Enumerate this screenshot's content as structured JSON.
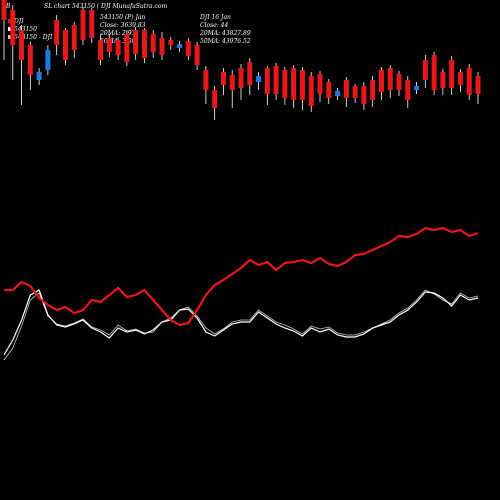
{
  "header": {
    "left_marker": "B",
    "title": "SL chart 543150 ( DJI MunafaSutra.com",
    "legend_line1": "DJI",
    "legend_line2": "543150",
    "legend_line3": "543150 - DJI",
    "stat_col1": [
      "543150 (P) Jan",
      "Close: 3639.83",
      "20MA: 2.93",
      "50MA: 3.08"
    ],
    "stat_col2": [
      "DJI 16 Jan",
      "Close: 44",
      "20MA: 43827.89",
      "50MA: 43976.52"
    ]
  },
  "colors": {
    "red_line": "#e8181a",
    "white_line": "#ffffff",
    "gray_line": "#c8c8c8",
    "bar_red": "#e8181a",
    "bar_blue": "#1e7be0",
    "background": "#000000"
  },
  "chart_data": {
    "type": "line",
    "x_count": 55,
    "series": [
      {
        "role": "red-line",
        "values": [
          210,
          210,
          218,
          214,
          202,
          195,
          190,
          193,
          187,
          190,
          200,
          198,
          205,
          212,
          203,
          205,
          210,
          200,
          190,
          180,
          175,
          177,
          190,
          205,
          215,
          220,
          226,
          232,
          240,
          235,
          238,
          230,
          237,
          238,
          240,
          237,
          242,
          236,
          234,
          238,
          245,
          246,
          250,
          254,
          258,
          264,
          263,
          266,
          272,
          270,
          272,
          268,
          270,
          264,
          267
        ]
      },
      {
        "role": "white-line",
        "values": [
          145,
          160,
          180,
          205,
          210,
          185,
          175,
          173,
          176,
          180,
          172,
          168,
          162,
          172,
          168,
          170,
          166,
          170,
          178,
          180,
          190,
          191,
          182,
          168,
          164,
          170,
          176,
          178,
          178,
          188,
          182,
          176,
          172,
          169,
          164,
          172,
          168,
          171,
          165,
          163,
          163,
          166,
          172,
          175,
          178,
          185,
          190,
          198,
          208,
          207,
          202,
          194,
          205,
          200,
          202
        ]
      },
      {
        "role": "gray-line",
        "values": [
          140,
          152,
          174,
          200,
          207,
          184,
          176,
          174,
          177,
          181,
          173,
          170,
          165,
          175,
          169,
          171,
          167,
          168,
          178,
          182,
          190,
          193,
          184,
          172,
          166,
          171,
          178,
          180,
          180,
          190,
          184,
          178,
          175,
          171,
          166,
          174,
          171,
          173,
          167,
          165,
          165,
          168,
          172,
          176,
          180,
          187,
          192,
          200,
          210,
          206,
          200,
          196,
          207,
          202,
          204
        ]
      }
    ],
    "bars": [
      {
        "dir": "down",
        "open": 500,
        "close": 480,
        "high": 500,
        "low": 440
      },
      {
        "dir": "down",
        "open": 490,
        "close": 455,
        "high": 495,
        "low": 420
      },
      {
        "dir": "down",
        "open": 470,
        "close": 440,
        "high": 475,
        "low": 395
      },
      {
        "dir": "down",
        "open": 455,
        "close": 425,
        "high": 458,
        "low": 410
      },
      {
        "dir": "up",
        "open": 420,
        "close": 428,
        "high": 432,
        "low": 415
      },
      {
        "dir": "up",
        "open": 430,
        "close": 450,
        "high": 455,
        "low": 425
      },
      {
        "dir": "down",
        "open": 480,
        "close": 455,
        "high": 485,
        "low": 445
      },
      {
        "dir": "down",
        "open": 470,
        "close": 440,
        "high": 472,
        "low": 435
      },
      {
        "dir": "down",
        "open": 475,
        "close": 450,
        "high": 478,
        "low": 442
      },
      {
        "dir": "down",
        "open": 490,
        "close": 460,
        "high": 493,
        "low": 455
      },
      {
        "dir": "down",
        "open": 490,
        "close": 462,
        "high": 492,
        "low": 457
      },
      {
        "dir": "down",
        "open": 460,
        "close": 440,
        "high": 465,
        "low": 435
      },
      {
        "dir": "down",
        "open": 462,
        "close": 448,
        "high": 466,
        "low": 443
      },
      {
        "dir": "down",
        "open": 460,
        "close": 445,
        "high": 463,
        "low": 440
      },
      {
        "dir": "down",
        "open": 466,
        "close": 438,
        "high": 470,
        "low": 434
      },
      {
        "dir": "down",
        "open": 470,
        "close": 446,
        "high": 473,
        "low": 440
      },
      {
        "dir": "down",
        "open": 470,
        "close": 442,
        "high": 472,
        "low": 437
      },
      {
        "dir": "down",
        "open": 466,
        "close": 448,
        "high": 470,
        "low": 442
      },
      {
        "dir": "down",
        "open": 462,
        "close": 445,
        "high": 468,
        "low": 440
      },
      {
        "dir": "down",
        "open": 460,
        "close": 455,
        "high": 463,
        "low": 450
      },
      {
        "dir": "up",
        "open": 452,
        "close": 456,
        "high": 459,
        "low": 448
      },
      {
        "dir": "down",
        "open": 459,
        "close": 444,
        "high": 462,
        "low": 440
      },
      {
        "dir": "down",
        "open": 455,
        "close": 435,
        "high": 458,
        "low": 430
      },
      {
        "dir": "down",
        "open": 430,
        "close": 410,
        "high": 434,
        "low": 396
      },
      {
        "dir": "down",
        "open": 410,
        "close": 392,
        "high": 414,
        "low": 380
      },
      {
        "dir": "down",
        "open": 428,
        "close": 415,
        "high": 432,
        "low": 405
      },
      {
        "dir": "down",
        "open": 425,
        "close": 410,
        "high": 430,
        "low": 392
      },
      {
        "dir": "down",
        "open": 432,
        "close": 412,
        "high": 436,
        "low": 400
      },
      {
        "dir": "down",
        "open": 438,
        "close": 415,
        "high": 442,
        "low": 405
      },
      {
        "dir": "up",
        "open": 418,
        "close": 424,
        "high": 428,
        "low": 410
      },
      {
        "dir": "down",
        "open": 432,
        "close": 406,
        "high": 434,
        "low": 395
      },
      {
        "dir": "down",
        "open": 434,
        "close": 406,
        "high": 437,
        "low": 400
      },
      {
        "dir": "down",
        "open": 430,
        "close": 402,
        "high": 433,
        "low": 395
      },
      {
        "dir": "down",
        "open": 432,
        "close": 400,
        "high": 435,
        "low": 392
      },
      {
        "dir": "down",
        "open": 430,
        "close": 400,
        "high": 433,
        "low": 390
      },
      {
        "dir": "down",
        "open": 424,
        "close": 394,
        "high": 428,
        "low": 388
      },
      {
        "dir": "down",
        "open": 426,
        "close": 406,
        "high": 429,
        "low": 398
      },
      {
        "dir": "down",
        "open": 418,
        "close": 402,
        "high": 421,
        "low": 396
      },
      {
        "dir": "up",
        "open": 404,
        "close": 409,
        "high": 412,
        "low": 400
      },
      {
        "dir": "down",
        "open": 420,
        "close": 402,
        "high": 423,
        "low": 393
      },
      {
        "dir": "down",
        "open": 414,
        "close": 402,
        "high": 416,
        "low": 397
      },
      {
        "dir": "down",
        "open": 414,
        "close": 396,
        "high": 418,
        "low": 390
      },
      {
        "dir": "down",
        "open": 420,
        "close": 400,
        "high": 424,
        "low": 393
      },
      {
        "dir": "down",
        "open": 430,
        "close": 408,
        "high": 433,
        "low": 400
      },
      {
        "dir": "down",
        "open": 432,
        "close": 410,
        "high": 435,
        "low": 402
      },
      {
        "dir": "down",
        "open": 426,
        "close": 410,
        "high": 429,
        "low": 404
      },
      {
        "dir": "down",
        "open": 420,
        "close": 400,
        "high": 424,
        "low": 392
      },
      {
        "dir": "up",
        "open": 410,
        "close": 414,
        "high": 418,
        "low": 406
      },
      {
        "dir": "down",
        "open": 440,
        "close": 420,
        "high": 445,
        "low": 412
      },
      {
        "dir": "down",
        "open": 445,
        "close": 410,
        "high": 448,
        "low": 405
      },
      {
        "dir": "down",
        "open": 428,
        "close": 412,
        "high": 431,
        "low": 405
      },
      {
        "dir": "down",
        "open": 440,
        "close": 412,
        "high": 444,
        "low": 405
      },
      {
        "dir": "down",
        "open": 428,
        "close": 415,
        "high": 431,
        "low": 408
      },
      {
        "dir": "down",
        "open": 432,
        "close": 405,
        "high": 436,
        "low": 400
      },
      {
        "dir": "down",
        "open": 424,
        "close": 406,
        "high": 428,
        "low": 396
      }
    ]
  }
}
